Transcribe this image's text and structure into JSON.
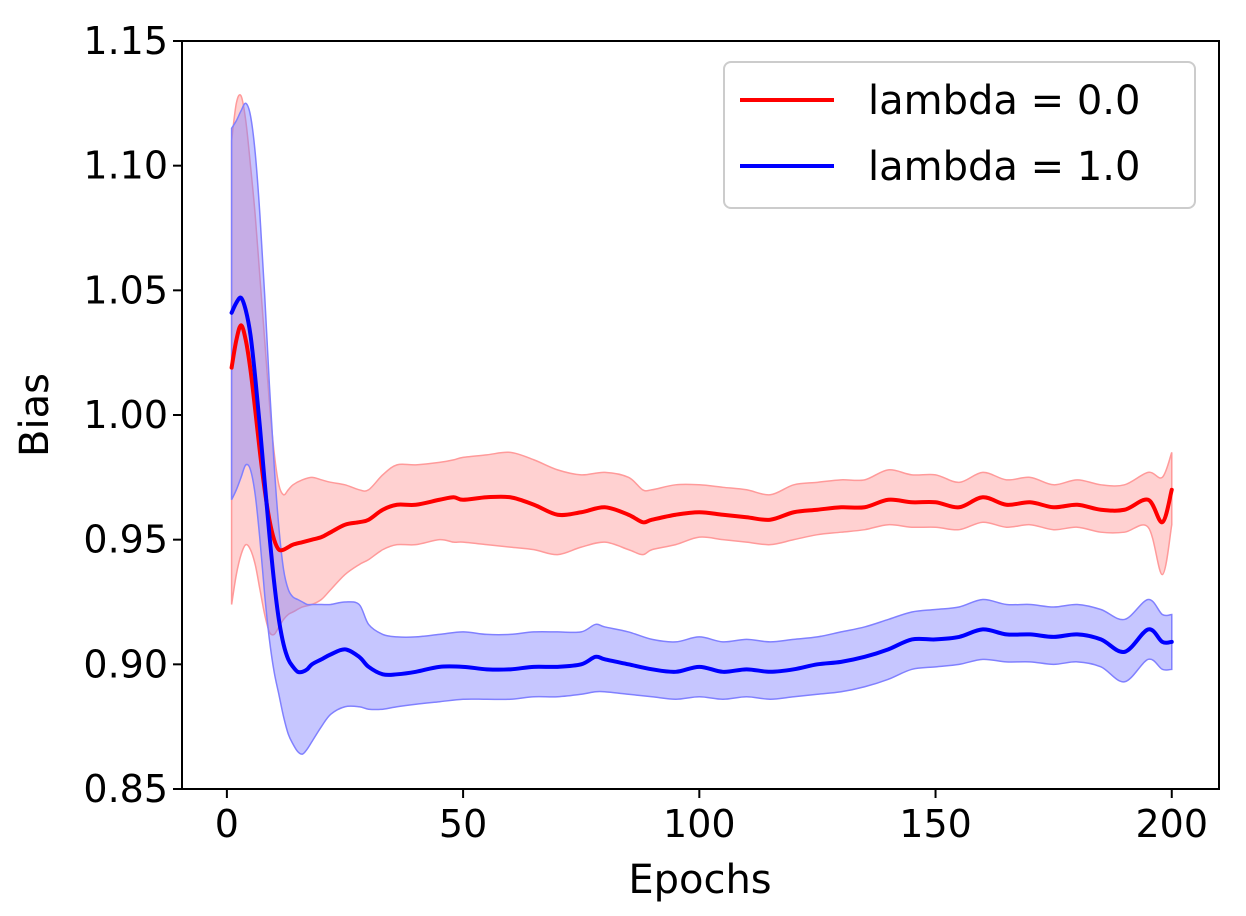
{
  "chart_data": {
    "type": "line",
    "title": "",
    "xlabel": "Epochs",
    "ylabel": "Bias",
    "xlim": [
      -9.5,
      210
    ],
    "ylim": [
      0.85,
      1.15
    ],
    "xticks": [
      0,
      50,
      100,
      150,
      200
    ],
    "yticks": [
      0.85,
      0.9,
      0.95,
      1.0,
      1.05,
      1.1,
      1.15
    ],
    "xtick_labels": [
      "0",
      "50",
      "100",
      "150",
      "200"
    ],
    "ytick_labels": [
      "0.85",
      "0.90",
      "0.95",
      "1.00",
      "1.05",
      "1.10",
      "1.15"
    ],
    "grid": false,
    "legend_position": "top-right",
    "series": [
      {
        "name": "lambda = 0.0",
        "color": "#ff0000",
        "band_color": "#ff9a9a",
        "x": [
          1,
          2,
          3,
          4,
          5,
          6,
          7,
          8,
          9,
          10,
          11,
          12,
          13,
          14,
          16,
          18,
          20,
          22,
          25,
          28,
          30,
          33,
          36,
          40,
          45,
          48,
          50,
          55,
          60,
          65,
          70,
          75,
          80,
          85,
          88,
          90,
          95,
          100,
          105,
          110,
          115,
          120,
          125,
          130,
          135,
          140,
          145,
          150,
          155,
          160,
          165,
          170,
          175,
          180,
          185,
          190,
          195,
          198,
          200
        ],
        "mean": [
          1.019,
          1.03,
          1.036,
          1.03,
          1.018,
          1.002,
          0.985,
          0.97,
          0.958,
          0.95,
          0.946,
          0.946,
          0.947,
          0.948,
          0.949,
          0.95,
          0.951,
          0.953,
          0.956,
          0.957,
          0.958,
          0.962,
          0.964,
          0.964,
          0.966,
          0.967,
          0.966,
          0.967,
          0.967,
          0.964,
          0.96,
          0.961,
          0.963,
          0.96,
          0.957,
          0.958,
          0.96,
          0.961,
          0.96,
          0.959,
          0.958,
          0.961,
          0.962,
          0.963,
          0.963,
          0.966,
          0.965,
          0.965,
          0.963,
          0.967,
          0.964,
          0.965,
          0.963,
          0.964,
          0.962,
          0.962,
          0.966,
          0.957,
          0.97
        ],
        "lower": [
          0.924,
          0.936,
          0.944,
          0.948,
          0.946,
          0.94,
          0.93,
          0.92,
          0.913,
          0.912,
          0.915,
          0.918,
          0.92,
          0.921,
          0.923,
          0.924,
          0.926,
          0.93,
          0.936,
          0.94,
          0.942,
          0.946,
          0.948,
          0.948,
          0.95,
          0.949,
          0.949,
          0.948,
          0.947,
          0.946,
          0.944,
          0.947,
          0.949,
          0.946,
          0.944,
          0.946,
          0.948,
          0.951,
          0.95,
          0.949,
          0.948,
          0.95,
          0.952,
          0.953,
          0.954,
          0.956,
          0.955,
          0.955,
          0.954,
          0.957,
          0.955,
          0.956,
          0.954,
          0.955,
          0.953,
          0.953,
          0.955,
          0.936,
          0.956
        ],
        "upper": [
          1.11,
          1.125,
          1.128,
          1.118,
          1.1,
          1.08,
          1.055,
          1.03,
          1.005,
          0.985,
          0.972,
          0.968,
          0.97,
          0.972,
          0.974,
          0.975,
          0.974,
          0.973,
          0.972,
          0.97,
          0.97,
          0.976,
          0.98,
          0.98,
          0.981,
          0.982,
          0.983,
          0.984,
          0.985,
          0.982,
          0.978,
          0.976,
          0.977,
          0.975,
          0.97,
          0.97,
          0.972,
          0.972,
          0.971,
          0.97,
          0.968,
          0.972,
          0.973,
          0.974,
          0.974,
          0.978,
          0.976,
          0.976,
          0.973,
          0.977,
          0.974,
          0.975,
          0.972,
          0.974,
          0.972,
          0.972,
          0.977,
          0.975,
          0.985
        ]
      },
      {
        "name": "lambda = 1.0",
        "color": "#0000ff",
        "band_color": "#8080ff",
        "x": [
          1,
          2,
          3,
          4,
          5,
          6,
          7,
          8,
          9,
          10,
          11,
          12,
          13,
          14,
          15,
          16,
          17,
          18,
          20,
          22,
          25,
          28,
          30,
          33,
          36,
          40,
          45,
          50,
          55,
          60,
          65,
          70,
          75,
          78,
          80,
          85,
          90,
          95,
          100,
          105,
          110,
          115,
          120,
          125,
          130,
          135,
          140,
          145,
          150,
          155,
          160,
          165,
          170,
          175,
          180,
          185,
          190,
          195,
          198,
          200
        ],
        "mean": [
          1.041,
          1.045,
          1.047,
          1.042,
          1.032,
          1.015,
          0.995,
          0.973,
          0.952,
          0.933,
          0.918,
          0.908,
          0.902,
          0.899,
          0.897,
          0.897,
          0.898,
          0.9,
          0.902,
          0.904,
          0.906,
          0.903,
          0.899,
          0.896,
          0.896,
          0.897,
          0.899,
          0.899,
          0.898,
          0.898,
          0.899,
          0.899,
          0.9,
          0.903,
          0.902,
          0.9,
          0.898,
          0.897,
          0.899,
          0.897,
          0.898,
          0.897,
          0.898,
          0.9,
          0.901,
          0.903,
          0.906,
          0.91,
          0.91,
          0.911,
          0.914,
          0.912,
          0.912,
          0.911,
          0.912,
          0.91,
          0.905,
          0.914,
          0.909,
          0.909
        ],
        "lower": [
          0.966,
          0.97,
          0.975,
          0.98,
          0.978,
          0.968,
          0.95,
          0.928,
          0.91,
          0.897,
          0.888,
          0.879,
          0.872,
          0.868,
          0.865,
          0.864,
          0.866,
          0.869,
          0.875,
          0.88,
          0.883,
          0.883,
          0.882,
          0.882,
          0.883,
          0.884,
          0.885,
          0.886,
          0.886,
          0.886,
          0.887,
          0.887,
          0.888,
          0.889,
          0.889,
          0.888,
          0.887,
          0.886,
          0.887,
          0.886,
          0.887,
          0.886,
          0.887,
          0.888,
          0.889,
          0.891,
          0.894,
          0.898,
          0.899,
          0.9,
          0.902,
          0.901,
          0.901,
          0.9,
          0.901,
          0.899,
          0.893,
          0.902,
          0.898,
          0.898
        ],
        "upper": [
          1.115,
          1.118,
          1.122,
          1.125,
          1.12,
          1.105,
          1.08,
          1.048,
          1.012,
          0.98,
          0.955,
          0.938,
          0.93,
          0.927,
          0.926,
          0.925,
          0.924,
          0.924,
          0.924,
          0.924,
          0.925,
          0.924,
          0.916,
          0.912,
          0.911,
          0.911,
          0.912,
          0.913,
          0.912,
          0.912,
          0.913,
          0.913,
          0.913,
          0.916,
          0.915,
          0.913,
          0.91,
          0.909,
          0.911,
          0.909,
          0.91,
          0.909,
          0.91,
          0.911,
          0.913,
          0.915,
          0.918,
          0.921,
          0.922,
          0.923,
          0.926,
          0.924,
          0.924,
          0.923,
          0.924,
          0.922,
          0.918,
          0.926,
          0.92,
          0.92
        ]
      }
    ]
  }
}
